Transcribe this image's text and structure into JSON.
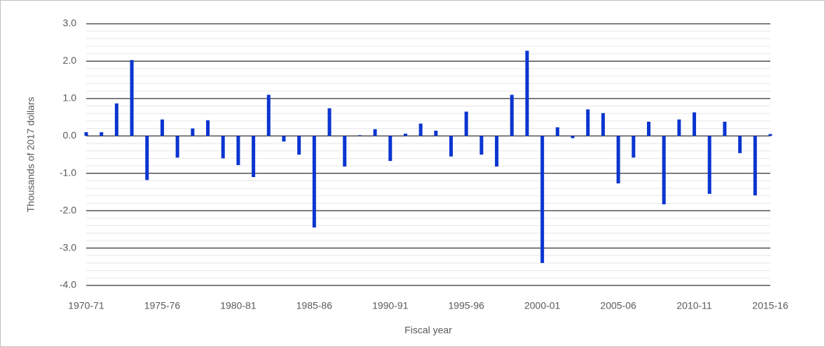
{
  "chart_data": {
    "type": "bar",
    "xlabel": "Fiscal year",
    "ylabel": "Thousands of 2017 dollars",
    "categories": [
      "1970-71",
      null,
      null,
      null,
      null,
      "1975-76",
      null,
      null,
      null,
      null,
      "1980-81",
      null,
      null,
      null,
      null,
      "1985-86",
      null,
      null,
      null,
      null,
      "1990-91",
      null,
      null,
      null,
      null,
      "1995-96",
      null,
      null,
      null,
      null,
      "2000-01",
      null,
      null,
      null,
      null,
      "2005-06",
      null,
      null,
      null,
      null,
      "2010-11",
      null,
      null,
      null,
      null,
      "2015-16"
    ],
    "values": [
      0.1,
      0.1,
      0.87,
      2.03,
      -1.18,
      0.44,
      -0.58,
      0.2,
      0.42,
      -0.6,
      -0.78,
      -1.1,
      1.1,
      -0.15,
      -0.5,
      -2.45,
      0.74,
      -0.82,
      0.02,
      0.18,
      -0.67,
      0.06,
      0.33,
      0.14,
      -0.55,
      0.65,
      -0.5,
      -0.82,
      1.1,
      2.28,
      -3.4,
      0.23,
      -0.06,
      0.71,
      0.61,
      -1.27,
      -0.58,
      0.38,
      -1.83,
      0.44,
      0.63,
      -1.55,
      0.38,
      -0.46,
      -1.59,
      0.05
    ],
    "color": "#0a35d0",
    "ylim": [
      -4,
      3
    ],
    "yticks": [
      {
        "value": -4,
        "label": "-4.0"
      },
      {
        "value": -3,
        "label": "-3.0"
      },
      {
        "value": -2,
        "label": "-2.0"
      },
      {
        "value": -1,
        "label": "-1.0"
      },
      {
        "value": 0,
        "label": "0.0"
      },
      {
        "value": 1,
        "label": "1.0"
      },
      {
        "value": 2,
        "label": "2.0"
      },
      {
        "value": 3,
        "label": "3.0"
      }
    ],
    "grid": true,
    "minor_grid": true
  }
}
